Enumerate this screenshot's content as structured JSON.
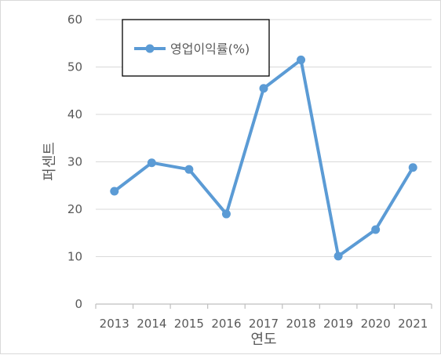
{
  "chart_data": {
    "type": "line",
    "title": "",
    "xlabel": "연도",
    "ylabel": "퍼센트",
    "ylim": [
      0,
      60
    ],
    "y_ticks": [
      "0",
      "10",
      "20",
      "30",
      "40",
      "50",
      "60"
    ],
    "categories": [
      "2013",
      "2014",
      "2015",
      "2016",
      "2017",
      "2018",
      "2019",
      "2020",
      "2021"
    ],
    "series": [
      {
        "name": "영업이익률(%)",
        "values": [
          23.8,
          29.8,
          28.4,
          19.0,
          45.5,
          51.5,
          10.1,
          15.7,
          28.8
        ]
      }
    ],
    "grid": true,
    "legend_position": "top-left",
    "line_color": "#5b9bd5",
    "grid_color": "#d9d9d9"
  }
}
